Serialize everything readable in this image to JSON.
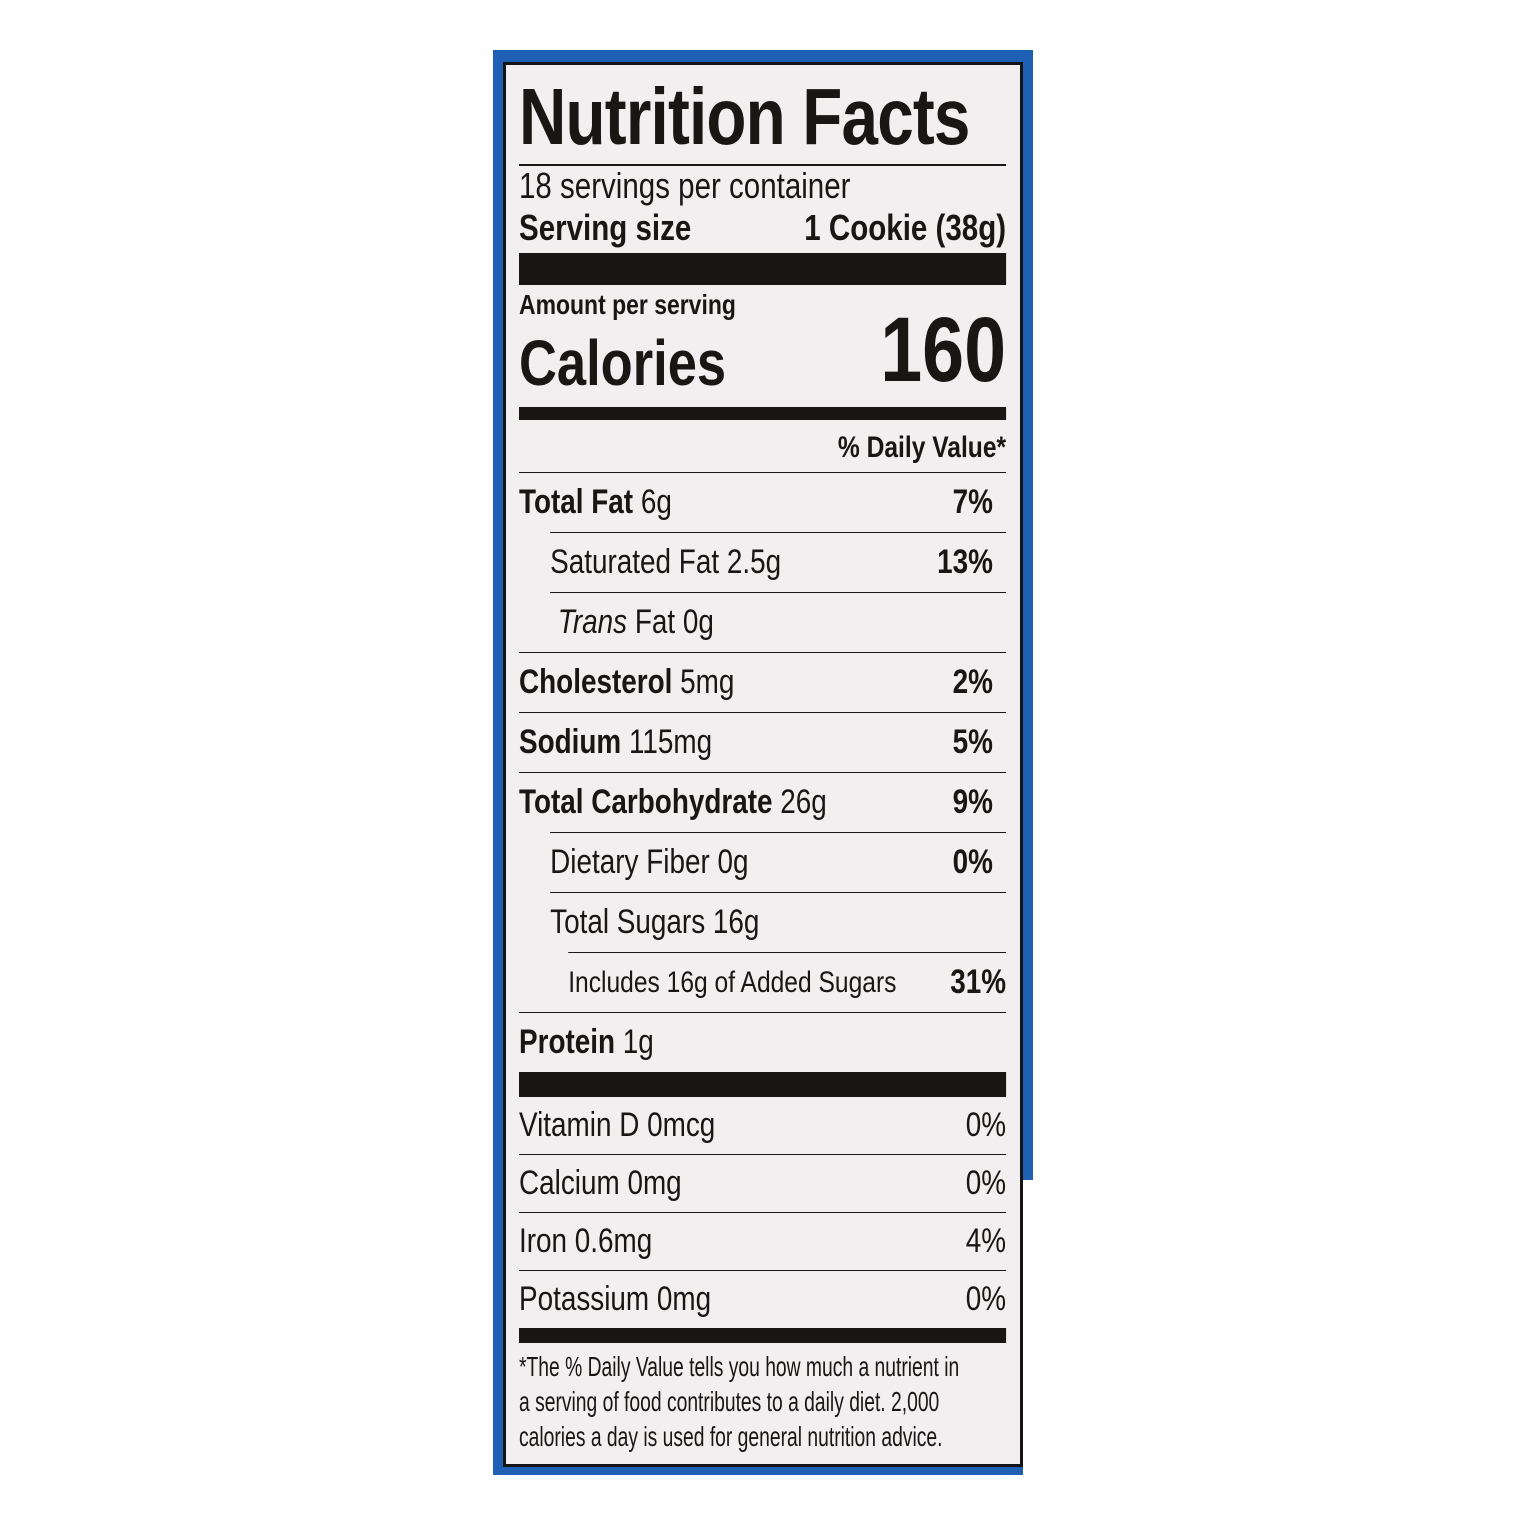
{
  "label": {
    "title": "Nutrition Facts",
    "servings_per_container": "18 servings per container",
    "serving_size_label": "Serving size",
    "serving_size_value": "1 Cookie (38g)",
    "amount_per_serving": "Amount per serving",
    "calories_label": "Calories",
    "calories_value": "160",
    "daily_value_header": "% Daily Value*",
    "nutrients": [
      {
        "name": "Total Fat",
        "amount": "6g",
        "dv": "7%"
      },
      {
        "name": "Saturated Fat",
        "amount": "2.5g",
        "dv": "13%"
      },
      {
        "name": "Trans",
        "name_suffix": "Fat",
        "amount": "0g",
        "dv": ""
      },
      {
        "name": "Cholesterol",
        "amount": "5mg",
        "dv": "2%"
      },
      {
        "name": "Sodium",
        "amount": "115mg",
        "dv": "5%"
      },
      {
        "name": "Total Carbohydrate",
        "amount": "26g",
        "dv": "9%"
      },
      {
        "name": "Dietary Fiber",
        "amount": "0g",
        "dv": "0%"
      },
      {
        "name": "Total Sugars",
        "amount": "16g",
        "dv": ""
      },
      {
        "name": "Includes 16g of Added Sugars",
        "amount": "",
        "dv": "31%"
      },
      {
        "name": "Protein",
        "amount": "1g",
        "dv": ""
      }
    ],
    "vitamins": [
      {
        "name": "Vitamin D 0mcg",
        "dv": "0%"
      },
      {
        "name": "Calcium 0mg",
        "dv": "0%"
      },
      {
        "name": "Iron 0.6mg",
        "dv": "4%"
      },
      {
        "name": "Potassium 0mg",
        "dv": "0%"
      }
    ],
    "footnote": [
      "*The % Daily Value tells you how much a nutrient in",
      "a serving of food contributes to a daily diet. 2,000",
      "calories a day is used for general nutrition advice."
    ]
  },
  "colors": {
    "packaging_blue": "#1f5fb4",
    "label_background": "#f1eff0",
    "ink": "#1a1614"
  }
}
